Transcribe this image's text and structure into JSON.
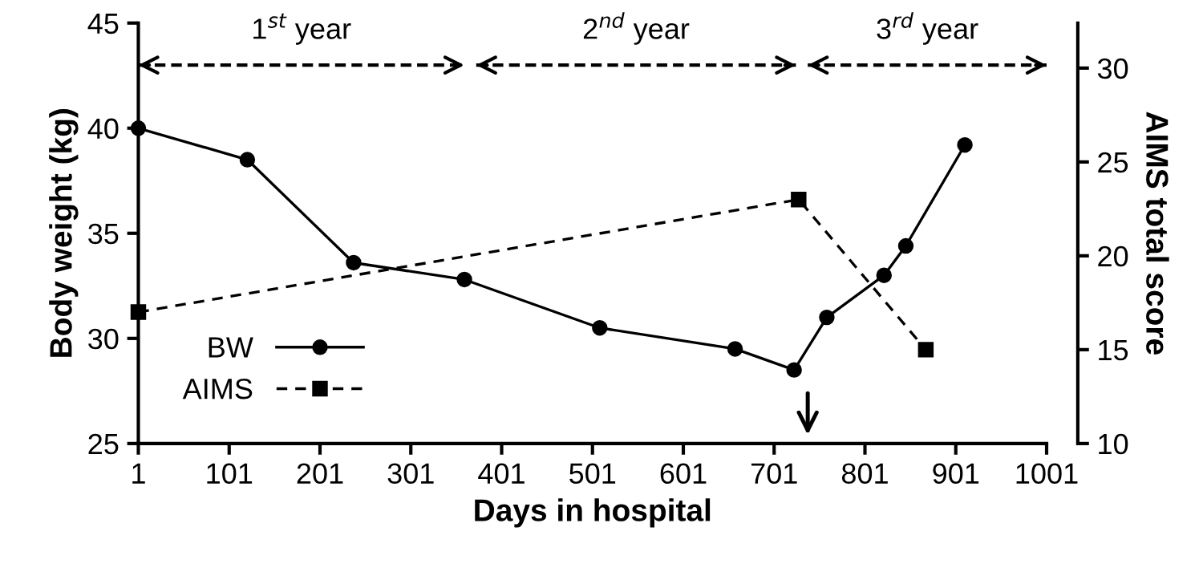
{
  "chart_data": {
    "type": "line",
    "xlabel": "Days in hospital",
    "ylabel": "Body weight (kg)",
    "y2label": "AIMS total score",
    "series": [
      {
        "name": "BW",
        "color": "#000000",
        "marker": "circle",
        "line_style": "solid",
        "x": [
          1,
          121,
          238,
          360,
          509,
          658,
          723,
          759,
          822,
          846,
          911
        ],
        "values": [
          40.0,
          38.5,
          33.6,
          32.8,
          30.5,
          29.5,
          28.5,
          31.0,
          33.0,
          34.4,
          39.2
        ]
      },
      {
        "name": "AIMS",
        "color": "#000000",
        "marker": "square",
        "line_style": "dashed",
        "axis": "y2",
        "x": [
          1,
          728,
          868
        ],
        "values": [
          17,
          23,
          15
        ]
      },
      {
        "color": "#000000",
        "marker": "none",
        "line_style": "dashed",
        "x": [
          1,
          360
        ],
        "values": [
          43,
          43
        ]
      },
      {
        "color": "#000000",
        "marker": "none",
        "line_style": "dashed",
        "x": [
          373,
          725
        ],
        "values": [
          43,
          43
        ]
      },
      {
        "color": "#000000",
        "marker": "none",
        "line_style": "dashed",
        "x": [
          738,
          1001
        ],
        "values": [
          43,
          43
        ]
      }
    ],
    "annotations": [
      "1$^{st}$ year",
      "2$^{nd}$ year",
      "3$^{rd}$ year"
    ],
    "xlim": [
      1,
      1001
    ],
    "xticks": [
      1,
      101,
      201,
      301,
      401,
      501,
      601,
      701,
      801,
      901,
      1001
    ],
    "ylim": [
      25,
      45
    ],
    "yticks": [
      25,
      30,
      35,
      40,
      45
    ],
    "y2lim": [
      10,
      32.4
    ],
    "y2ticks": [
      10,
      15,
      20,
      25,
      30
    ],
    "grid": false,
    "legend": "bottom left"
  }
}
